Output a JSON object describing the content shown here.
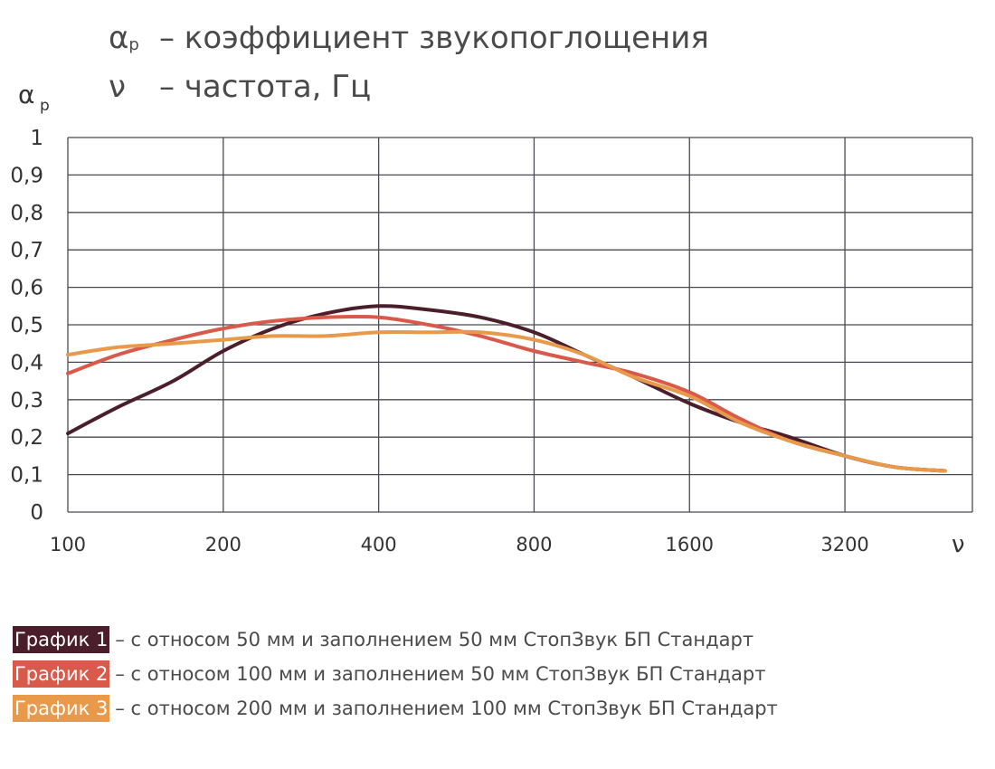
{
  "header": {
    "line1_symbol": "α",
    "line1_subscript": "p",
    "line1_text": "– коэффициент звукопоглощения",
    "line2_symbol": "ν",
    "line2_text": "– частота, Гц"
  },
  "chart_data": {
    "type": "line",
    "ylabel": "α",
    "ylabel_subscript": "p",
    "xlabel": "ν",
    "x_scale": "log2",
    "x_ticks": [
      "100",
      "200",
      "400",
      "800",
      "1600",
      "3200"
    ],
    "xlim": [
      100,
      5650
    ],
    "ylim": [
      0,
      1
    ],
    "y_ticks": [
      "0",
      "0,1",
      "0,2",
      "0,3",
      "0,4",
      "0,5",
      "0,6",
      "0,7",
      "0,8",
      "0,9",
      "1"
    ],
    "grid": true,
    "x": [
      100,
      125,
      160,
      200,
      250,
      315,
      400,
      500,
      630,
      800,
      1000,
      1250,
      1600,
      2000,
      2500,
      3200,
      4000,
      5000
    ],
    "series": [
      {
        "name": "График 1",
        "color": "#4a1f2b",
        "values": [
          0.21,
          0.28,
          0.35,
          0.43,
          0.49,
          0.53,
          0.55,
          0.54,
          0.52,
          0.48,
          0.42,
          0.36,
          0.29,
          0.24,
          0.2,
          0.15,
          0.12,
          0.11
        ]
      },
      {
        "name": "График 2",
        "color": "#d95a4a",
        "values": [
          0.37,
          0.42,
          0.46,
          0.49,
          0.51,
          0.52,
          0.52,
          0.5,
          0.47,
          0.43,
          0.4,
          0.37,
          0.32,
          0.25,
          0.19,
          0.15,
          0.12,
          0.11
        ]
      },
      {
        "name": "График 3",
        "color": "#e89a4a",
        "values": [
          0.42,
          0.44,
          0.45,
          0.46,
          0.47,
          0.47,
          0.48,
          0.48,
          0.48,
          0.46,
          0.42,
          0.36,
          0.31,
          0.24,
          0.19,
          0.15,
          0.12,
          0.11
        ]
      }
    ]
  },
  "legend": [
    {
      "label": "График 1",
      "description": "– с относом 50 мм и заполнением 50 мм СтопЗвук БП Стандарт",
      "color": "#4a1f2b"
    },
    {
      "label": "График 2",
      "description": "– с относом 100 мм и заполнением 50 мм СтопЗвук БП Стандарт",
      "color": "#d95a4a"
    },
    {
      "label": "График 3",
      "description": "– с относом 200 мм и заполнением 100 мм СтопЗвук БП Стандарт",
      "color": "#e89a4a"
    }
  ]
}
